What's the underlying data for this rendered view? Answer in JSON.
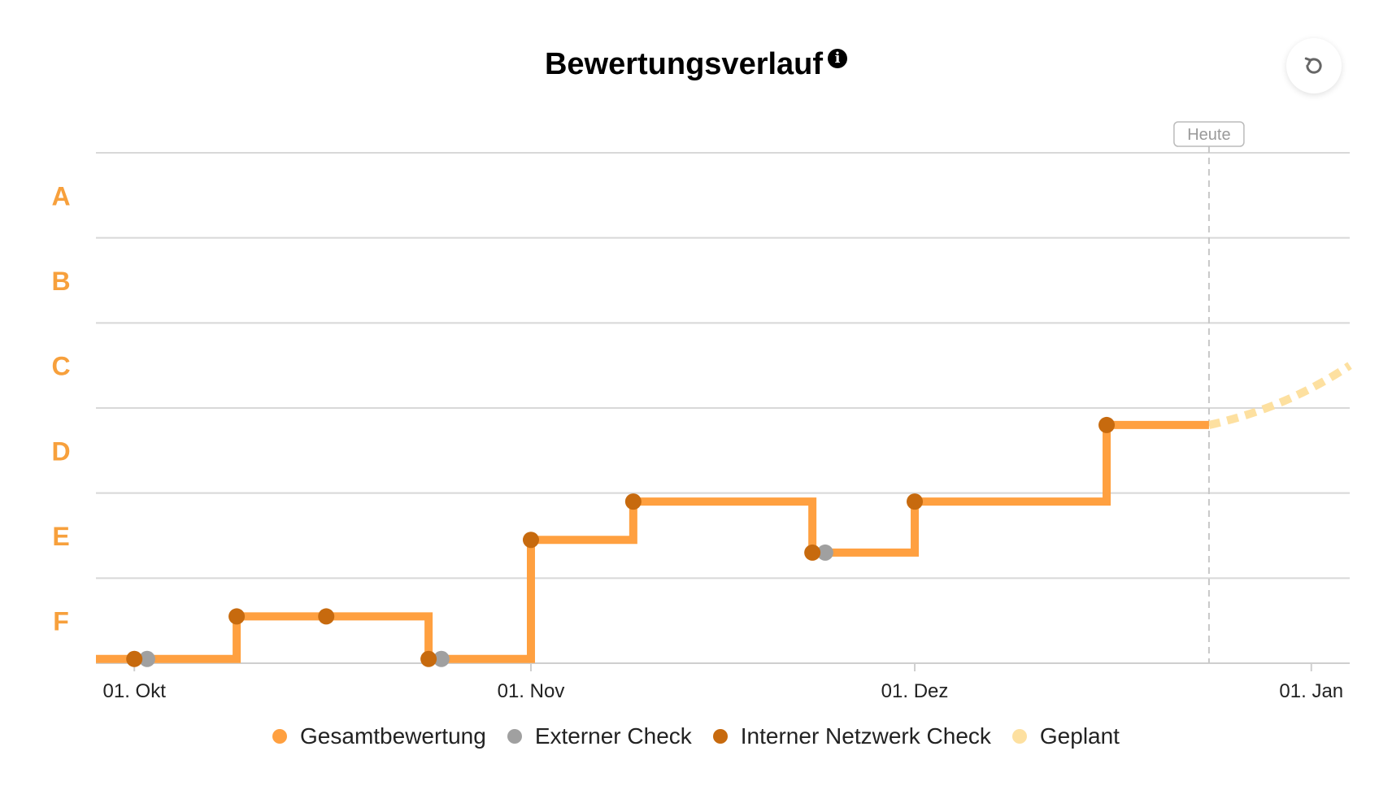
{
  "header": {
    "title": "Bewertungsverlauf",
    "info_icon": "info-icon",
    "reset_icon": "reset-icon"
  },
  "colors": {
    "overall": "#FFA040",
    "external": "#A0A0A0",
    "internal": "#C76A0E",
    "planned": "#FDE0A0",
    "grade_label": "#F7A03C",
    "grid": "#D8D8D8",
    "today_line": "#C8C8C8"
  },
  "chart_data": {
    "type": "line",
    "title": "Bewertungsverlauf",
    "step": true,
    "y_categories": [
      "A",
      "B",
      "C",
      "D",
      "E",
      "F"
    ],
    "y_note": "value = grade rank from bottom (F band 0–1, E 1–2, D 2–3, C 3–4, B 4–5, A 5–6)",
    "ylim": [
      0,
      6
    ],
    "x_ticks": [
      {
        "date": "2023-10-01",
        "label": "01. Okt"
      },
      {
        "date": "2023-11-01",
        "label": "01. Nov"
      },
      {
        "date": "2023-12-01",
        "label": "01. Dez"
      },
      {
        "date": "2024-01-01",
        "label": "01. Jan"
      }
    ],
    "xlim": [
      "2023-09-28",
      "2024-01-04"
    ],
    "today": {
      "date": "2023-12-24",
      "label": "Heute"
    },
    "grid": true,
    "legend_position": "bottom",
    "series": [
      {
        "name": "Gesamtbewertung",
        "color": "#FFA040",
        "style": "step",
        "points": [
          {
            "x": "2023-09-28",
            "y": 0.05
          },
          {
            "x": "2023-10-09",
            "y": 0.55
          },
          {
            "x": "2023-10-24",
            "y": 0.05
          },
          {
            "x": "2023-11-01",
            "y": 1.45
          },
          {
            "x": "2023-11-09",
            "y": 1.9
          },
          {
            "x": "2023-11-23",
            "y": 1.3
          },
          {
            "x": "2023-12-01",
            "y": 1.9
          },
          {
            "x": "2023-12-16",
            "y": 2.8
          },
          {
            "x": "2023-12-24",
            "y": 2.8
          }
        ]
      },
      {
        "name": "Externer Check",
        "color": "#A0A0A0",
        "points": [
          {
            "x": "2023-10-02",
            "y": 0.05
          },
          {
            "x": "2023-10-25",
            "y": 0.05
          },
          {
            "x": "2023-11-24",
            "y": 1.3
          }
        ]
      },
      {
        "name": "Interner Netzwerk Check",
        "color": "#C76A0E",
        "points": [
          {
            "x": "2023-10-01",
            "y": 0.05
          },
          {
            "x": "2023-10-09",
            "y": 0.55
          },
          {
            "x": "2023-10-16",
            "y": 0.55
          },
          {
            "x": "2023-10-24",
            "y": 0.05
          },
          {
            "x": "2023-11-01",
            "y": 1.45
          },
          {
            "x": "2023-11-09",
            "y": 1.9
          },
          {
            "x": "2023-11-23",
            "y": 1.3
          },
          {
            "x": "2023-12-01",
            "y": 1.9
          },
          {
            "x": "2023-12-16",
            "y": 2.8
          }
        ]
      },
      {
        "name": "Geplant",
        "color": "#FDE0A0",
        "style": "dashed",
        "points": [
          {
            "x": "2023-12-24",
            "y": 2.8
          },
          {
            "x": "2023-12-30",
            "y": 3.0
          },
          {
            "x": "2024-01-04",
            "y": 3.5
          }
        ]
      }
    ]
  },
  "legend": {
    "items": [
      {
        "label": "Gesamtbewertung",
        "color": "#FFA040"
      },
      {
        "label": "Externer Check",
        "color": "#A0A0A0"
      },
      {
        "label": "Interner Netzwerk Check",
        "color": "#C76A0E"
      },
      {
        "label": "Geplant",
        "color": "#FDE0A0"
      }
    ]
  }
}
